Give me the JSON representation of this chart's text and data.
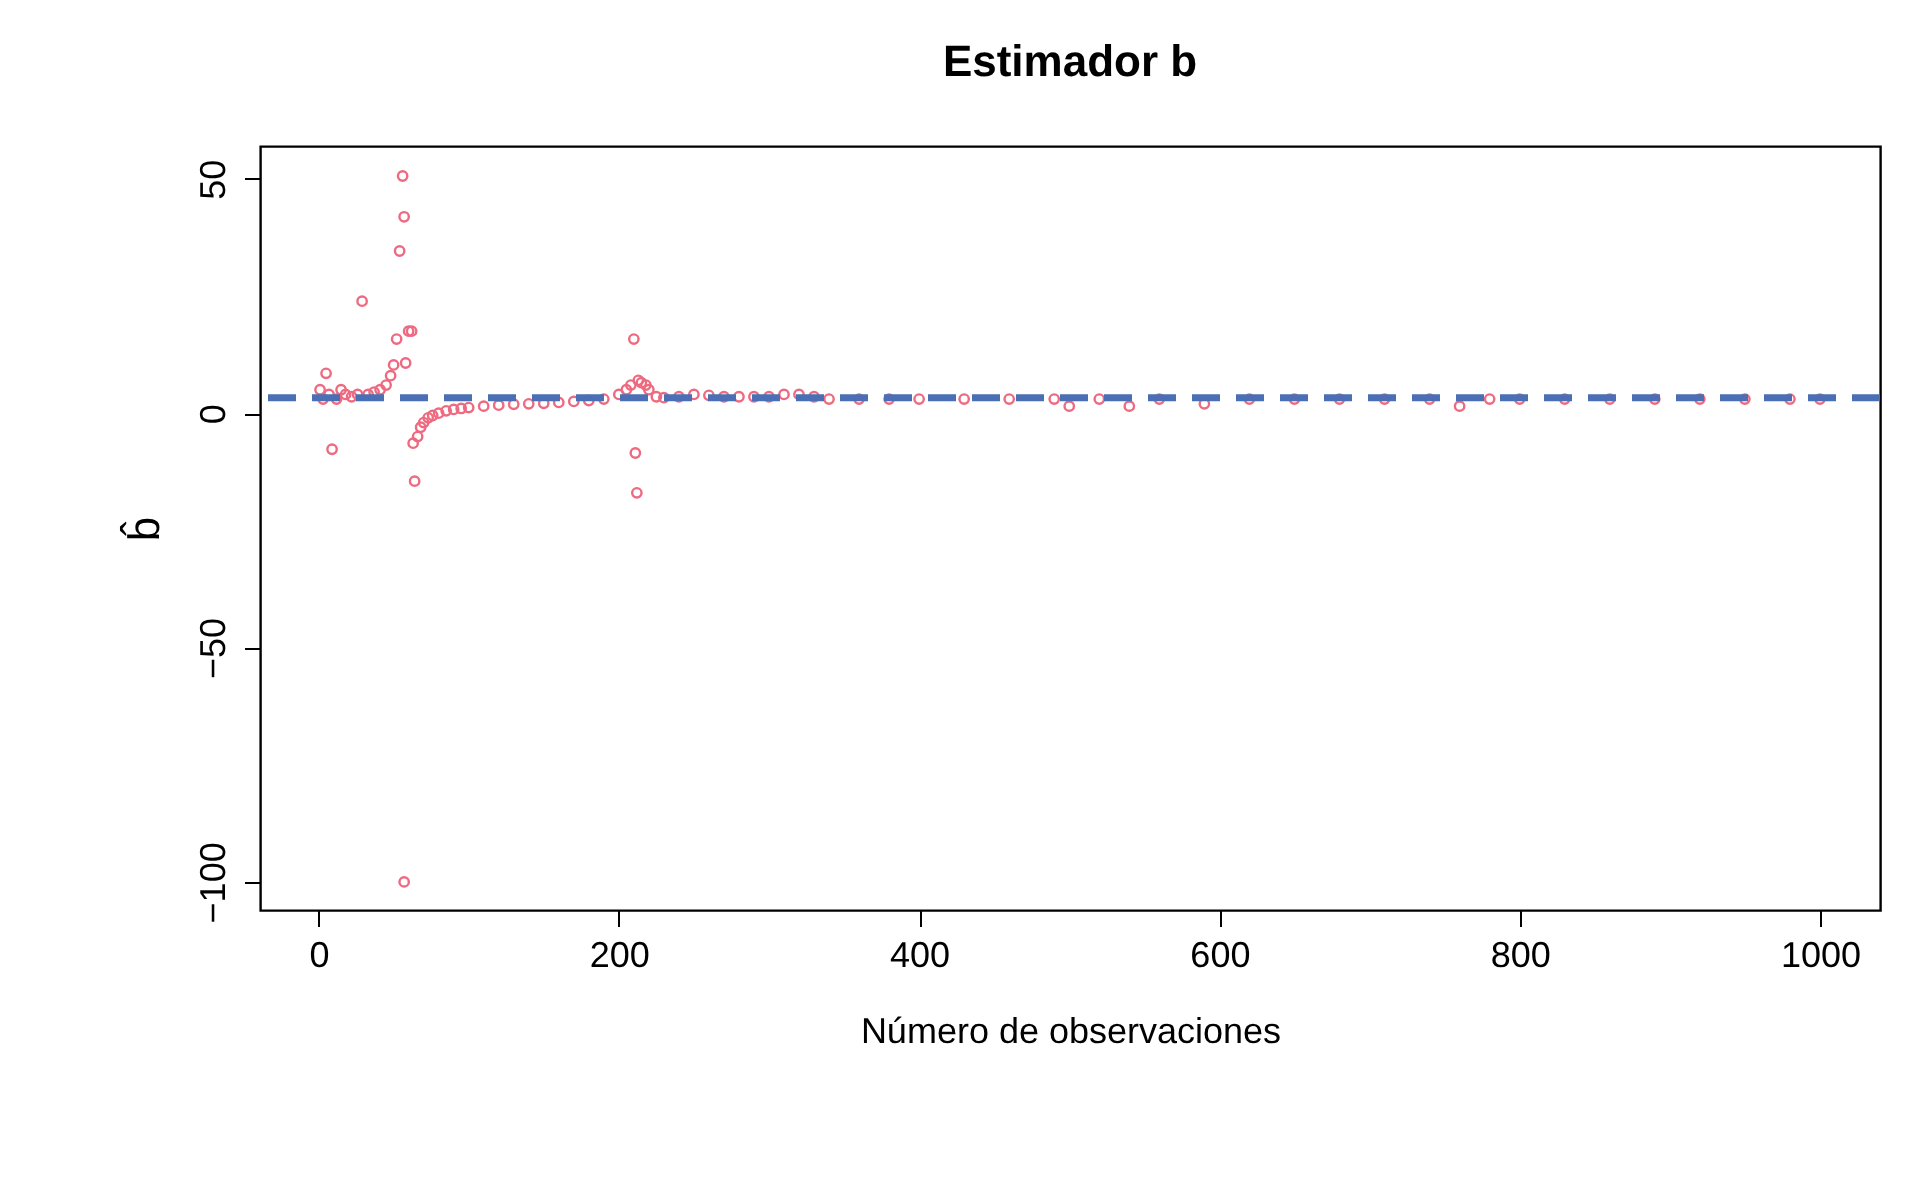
{
  "chart_data": {
    "type": "scatter",
    "title": "Estimador b",
    "xlabel": "Número de observaciones",
    "ylabel": "b̂",
    "marker": "circle",
    "grid": false,
    "xlim": [
      -39,
      1040
    ],
    "ylim": [
      -106,
      57
    ],
    "xticks": [
      0,
      200,
      400,
      600,
      800,
      1000
    ],
    "yticks": [
      50,
      0,
      -50,
      -100
    ],
    "ref_lines": [
      {
        "axis": "y",
        "value": 3.3,
        "color": "#4a6fb5",
        "line_style": "dashed"
      }
    ],
    "series": [
      {
        "color": "#ee6a80",
        "x": [
          1,
          3,
          5,
          7,
          9,
          12,
          15,
          18,
          22,
          26,
          29,
          33,
          37,
          41,
          45,
          48,
          50,
          52,
          54,
          56,
          57,
          57,
          58,
          60,
          62,
          63,
          64,
          66,
          68,
          70,
          73,
          76,
          80,
          85,
          90,
          95,
          100,
          110,
          120,
          130,
          140,
          150,
          160,
          170,
          180,
          190,
          200,
          205,
          208,
          210,
          211,
          212,
          213,
          215,
          218,
          220,
          225,
          230,
          240,
          250,
          260,
          270,
          280,
          290,
          300,
          310,
          320,
          330,
          340,
          360,
          380,
          400,
          430,
          460,
          490,
          500,
          520,
          540,
          560,
          590,
          620,
          650,
          680,
          710,
          740,
          760,
          780,
          800,
          830,
          860,
          890,
          920,
          950,
          980,
          1000
        ],
        "values": [
          5,
          3,
          8.5,
          4,
          -7.7,
          3,
          5,
          4,
          3.5,
          4,
          23.9,
          4,
          4.5,
          5,
          6,
          8,
          10.3,
          15.8,
          34.6,
          50.6,
          41.9,
          -100,
          10.7,
          17.5,
          17.5,
          -6.4,
          -14.5,
          -5,
          -3,
          -2,
          -1,
          -0.5,
          0,
          0.5,
          0.8,
          1,
          1.2,
          1.5,
          1.7,
          1.9,
          2,
          2.1,
          2.3,
          2.5,
          2.7,
          3,
          4,
          5,
          6,
          15.8,
          -8.5,
          -17,
          7,
          6.5,
          6,
          5,
          3.5,
          3.3,
          3.5,
          4,
          3.8,
          3.5,
          3.5,
          3.5,
          3.5,
          4,
          4,
          3.5,
          3,
          3,
          3,
          3,
          3,
          3,
          3,
          1.5,
          3,
          1.5,
          3,
          2,
          3,
          3,
          3,
          3,
          3,
          1.5,
          3,
          3,
          3,
          3,
          3,
          3,
          3,
          3,
          3
        ]
      }
    ]
  }
}
